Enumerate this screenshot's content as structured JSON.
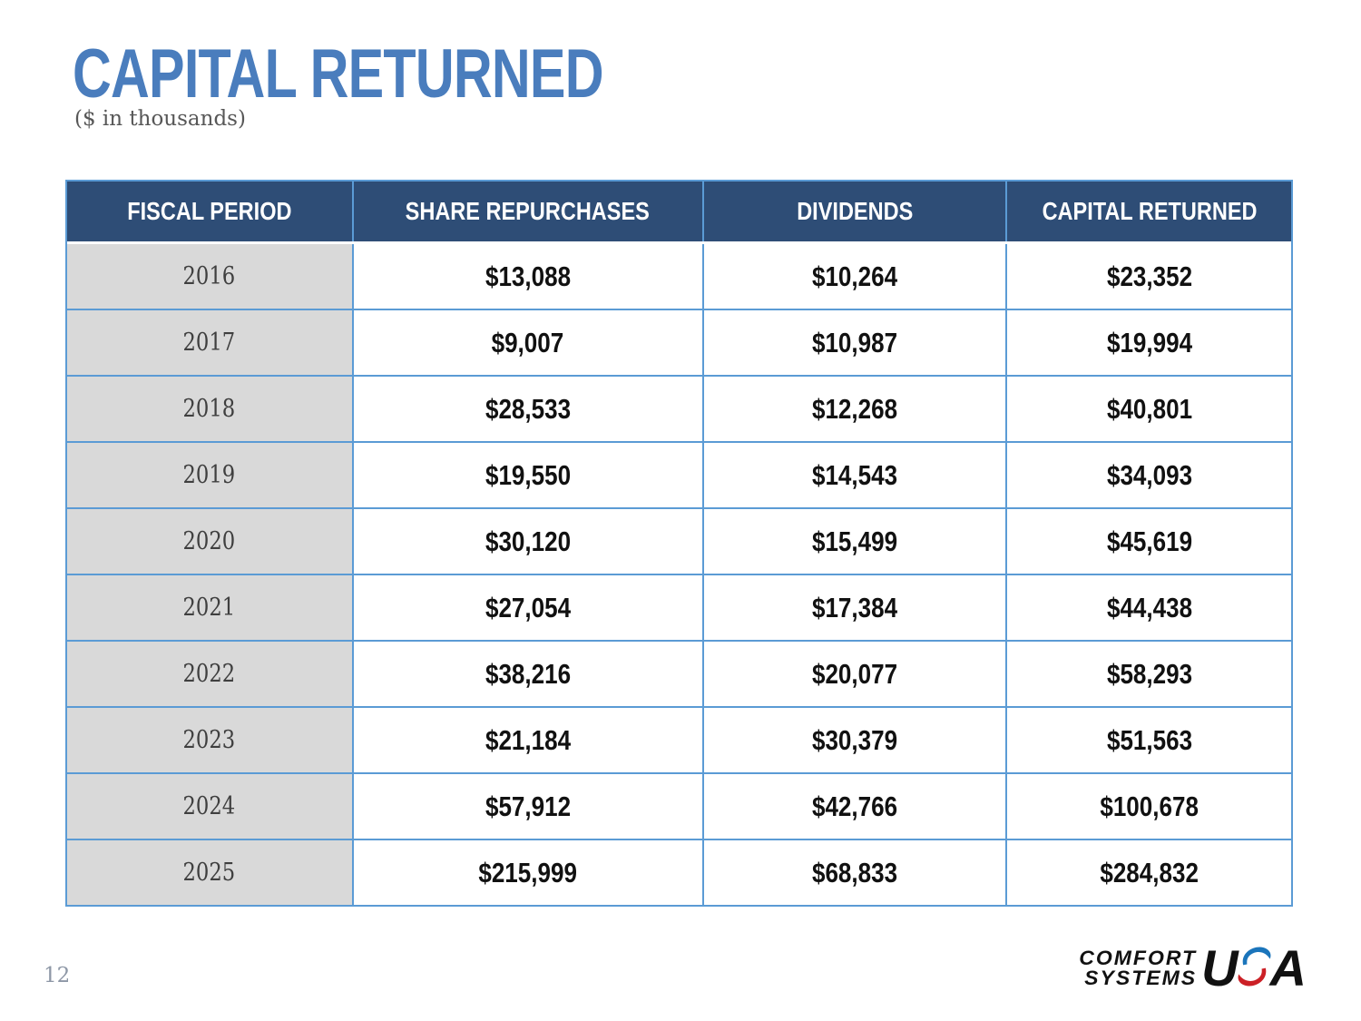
{
  "title": "CAPITAL RETURNED",
  "subtitle": "($ in thousands)",
  "page_number": "12",
  "table": {
    "columns": [
      "FISCAL PERIOD",
      "SHARE REPURCHASES",
      "DIVIDENDS",
      "CAPITAL RETURNED"
    ],
    "rows": [
      [
        "2016",
        "$13,088",
        "$10,264",
        "$23,352"
      ],
      [
        "2017",
        "$9,007",
        "$10,987",
        "$19,994"
      ],
      [
        "2018",
        "$28,533",
        "$12,268",
        "$40,801"
      ],
      [
        "2019",
        "$19,550",
        "$14,543",
        "$34,093"
      ],
      [
        "2020",
        "$30,120",
        "$15,499",
        "$45,619"
      ],
      [
        "2021",
        "$27,054",
        "$17,384",
        "$44,438"
      ],
      [
        "2022",
        "$38,216",
        "$20,077",
        "$58,293"
      ],
      [
        "2023",
        "$21,184",
        "$30,379",
        "$51,563"
      ],
      [
        "2024",
        "$57,912",
        "$42,766",
        "$100,678"
      ],
      [
        "2025",
        "$215,999",
        "$68,833",
        "$284,832"
      ]
    ]
  },
  "logo": {
    "line1": "COMFORT",
    "line2": "SYSTEMS",
    "usa_prefix": "U",
    "usa_suffix": "A"
  },
  "colors": {
    "title_blue": "#4a7dbd",
    "header_navy": "#2e4d76",
    "grid_blue": "#5b9bd5",
    "year_cell_gray": "#d9d9d9",
    "logo_red": "#cc2026",
    "logo_blue": "#1b75bb"
  },
  "chart_data": {
    "type": "table",
    "title": "Capital Returned ($ in thousands)",
    "columns": [
      "Fiscal Period",
      "Share Repurchases",
      "Dividends",
      "Capital Returned"
    ],
    "categories": [
      "2016",
      "2017",
      "2018",
      "2019",
      "2020",
      "2021",
      "2022",
      "2023",
      "2024",
      "2025"
    ],
    "series": [
      {
        "name": "Share Repurchases",
        "values": [
          13088,
          9007,
          28533,
          19550,
          30120,
          27054,
          38216,
          21184,
          57912,
          215999
        ]
      },
      {
        "name": "Dividends",
        "values": [
          10264,
          10987,
          12268,
          14543,
          15499,
          17384,
          20077,
          30379,
          42766,
          68833
        ]
      },
      {
        "name": "Capital Returned",
        "values": [
          23352,
          19994,
          40801,
          34093,
          45619,
          44438,
          58293,
          51563,
          100678,
          284832
        ]
      }
    ]
  }
}
